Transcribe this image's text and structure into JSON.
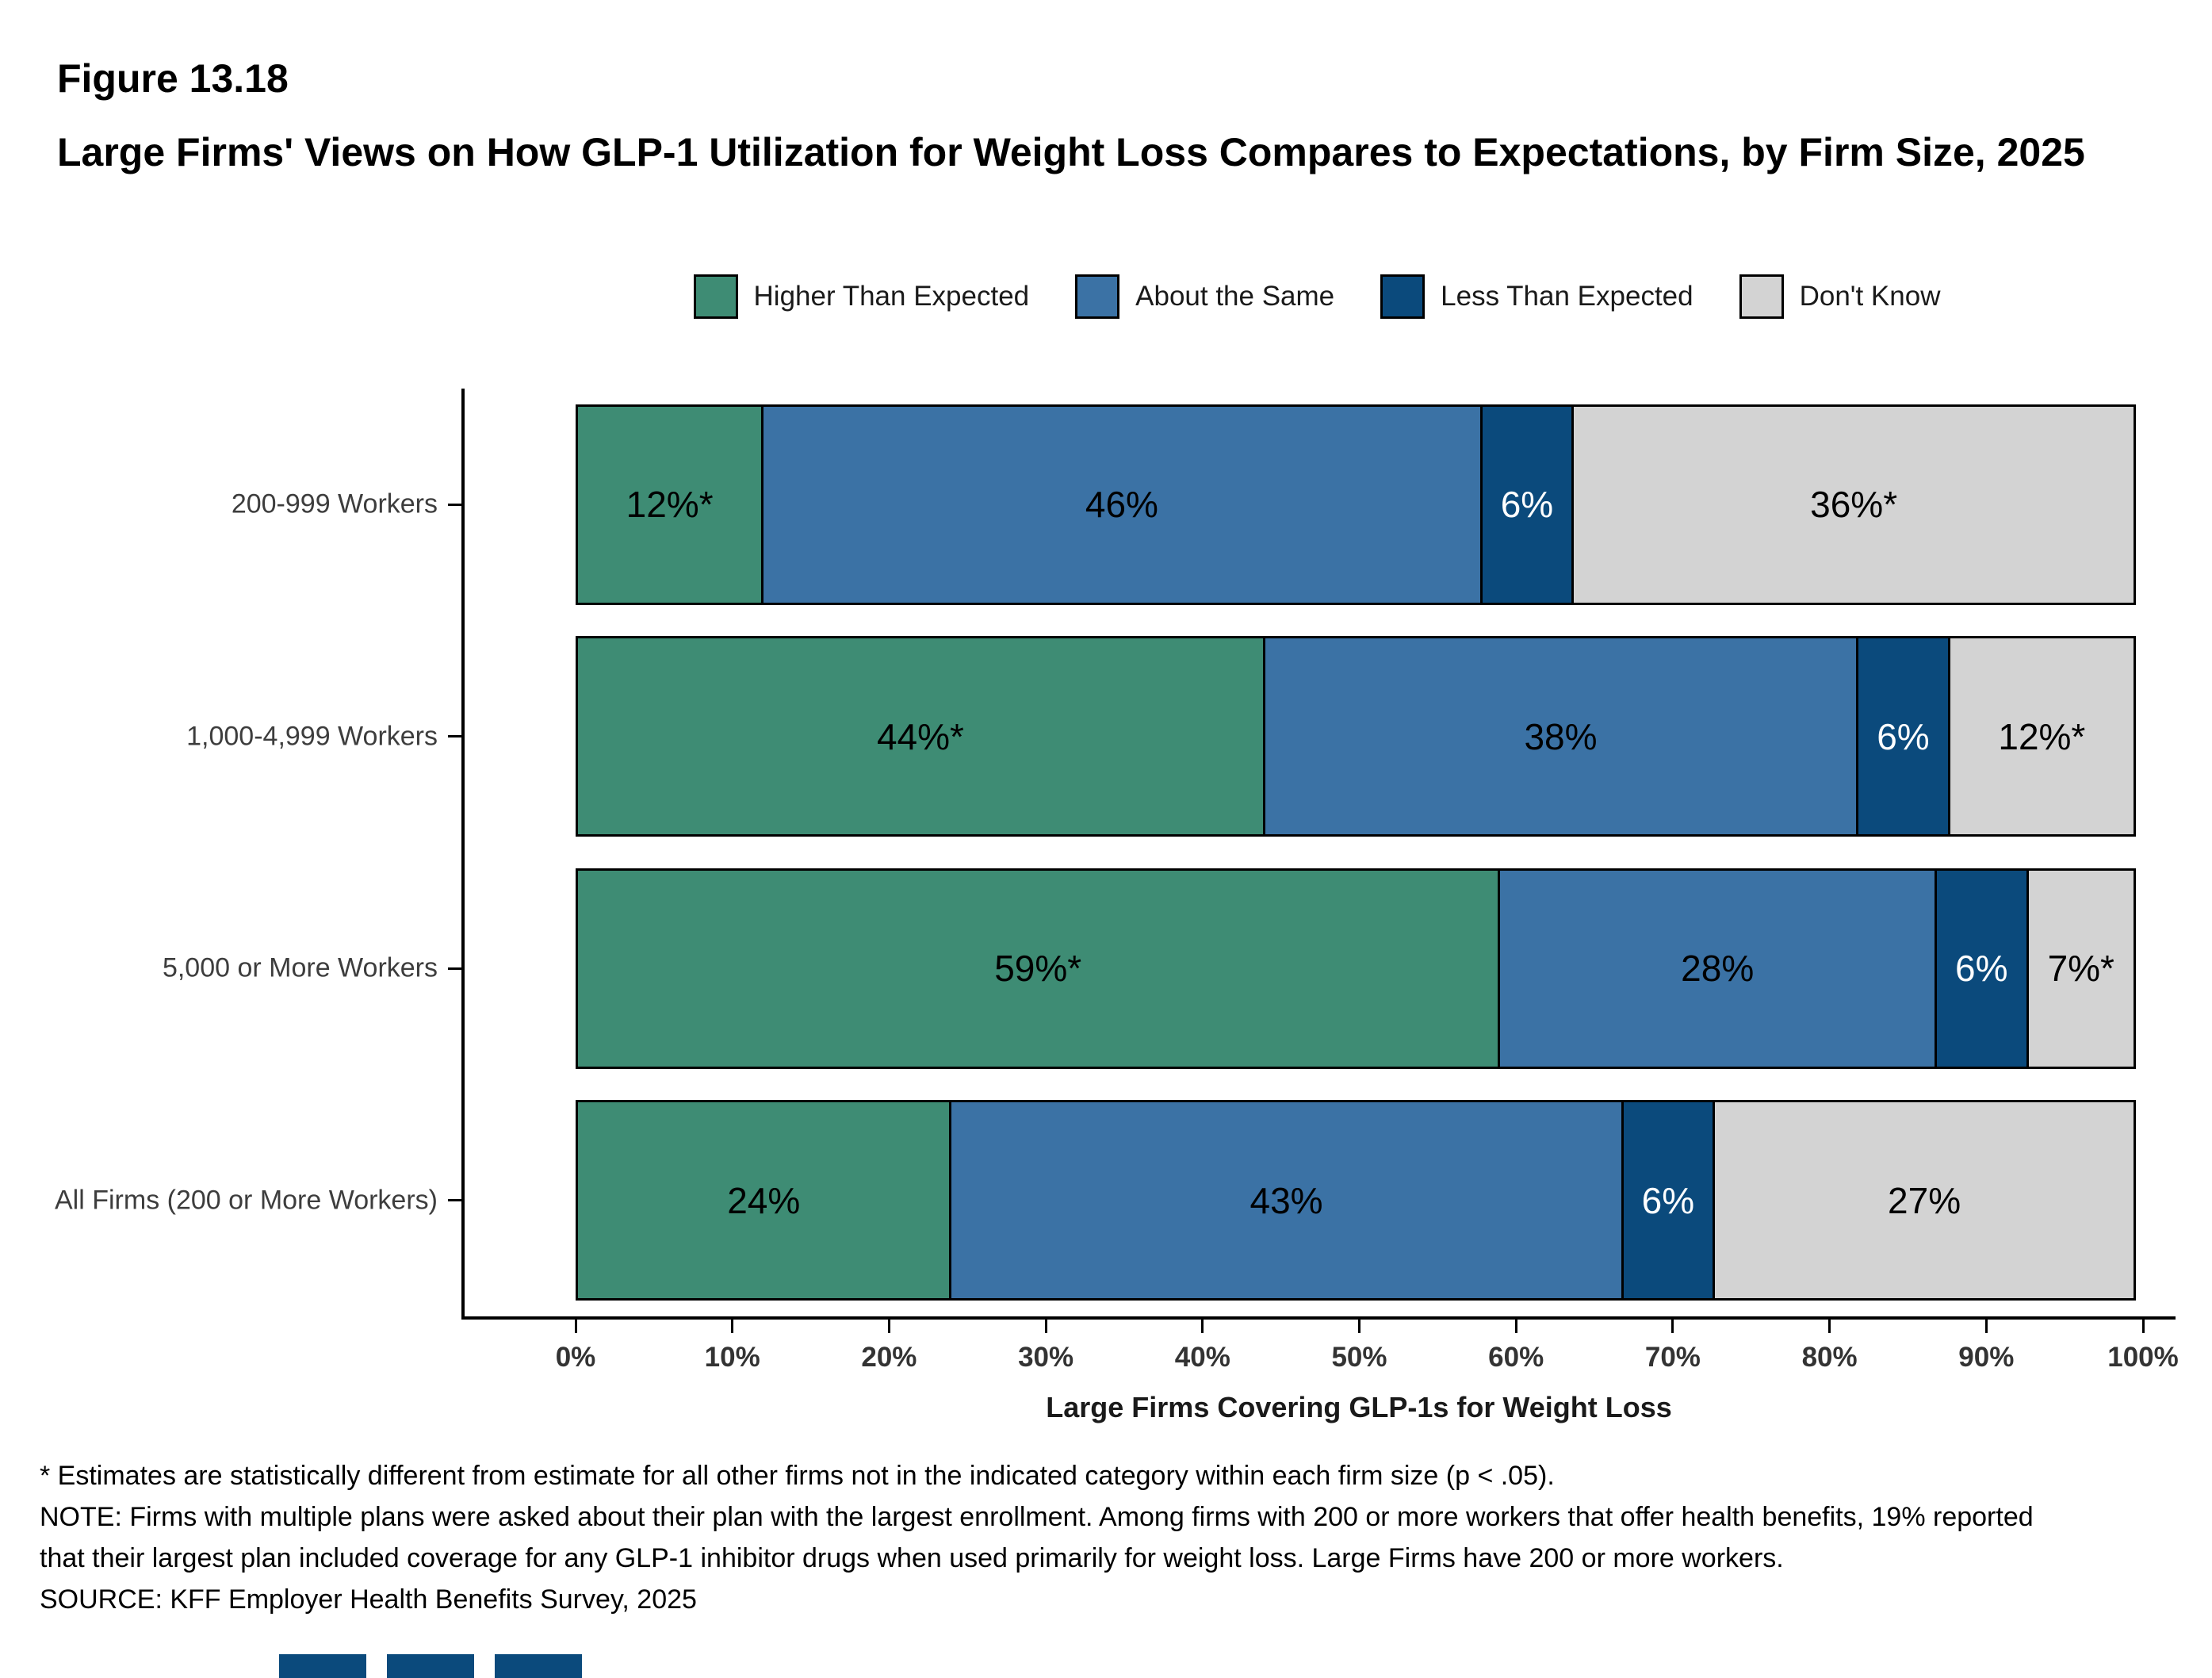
{
  "figure": {
    "label": "Figure 13.18",
    "title": "Large Firms' Views on How GLP-1 Utilization for Weight Loss Compares to Expectations, by Firm Size, 2025"
  },
  "chart_data": {
    "type": "bar",
    "orientation": "horizontal",
    "stacked": true,
    "grid": false,
    "legend_position": "top",
    "categories": [
      "200-999 Workers",
      "1,000-4,999 Workers",
      "5,000 or More Workers",
      "All Firms (200 or More Workers)"
    ],
    "series": [
      {
        "name": "Higher Than Expected",
        "color": "#3E8C74",
        "label_color": "#000000",
        "values": [
          12,
          44,
          59,
          24
        ],
        "labels": [
          "12%*",
          "44%*",
          "59%*",
          "24%"
        ]
      },
      {
        "name": "About the Same",
        "color": "#3B72A5",
        "label_color": "#000000",
        "values": [
          46,
          38,
          28,
          43
        ],
        "labels": [
          "46%",
          "38%",
          "28%",
          "43%"
        ]
      },
      {
        "name": "Less Than Expected",
        "color": "#0B4A7C",
        "label_color": "#FFFFFF",
        "values": [
          6,
          6,
          6,
          6
        ],
        "labels": [
          "6%",
          "6%",
          "6%",
          "6%"
        ]
      },
      {
        "name": "Don't Know",
        "color": "#D3D3D3",
        "label_color": "#000000",
        "values": [
          36,
          12,
          7,
          27
        ],
        "labels": [
          "36%*",
          "12%*",
          "7%*",
          "27%"
        ]
      }
    ],
    "xlabel": "Large Firms Covering GLP-1s for Weight Loss",
    "x_ticks": [
      "0%",
      "10%",
      "20%",
      "30%",
      "40%",
      "50%",
      "60%",
      "70%",
      "80%",
      "90%",
      "100%"
    ],
    "xlim": [
      0,
      100
    ]
  },
  "footnotes": {
    "significance": "* Estimates are statistically different from estimate for all other firms not in the indicated category within each firm size (p < .05).",
    "note": "NOTE: Firms with multiple plans were asked about their plan with the largest enrollment.  Among firms with 200 or more workers that offer health benefits, 19% reported that their largest plan included coverage for any GLP-1 inhibitor drugs when used primarily for weight loss. Large Firms have 200 or more workers.",
    "source": "SOURCE: KFF Employer Health Benefits Survey, 2025"
  }
}
